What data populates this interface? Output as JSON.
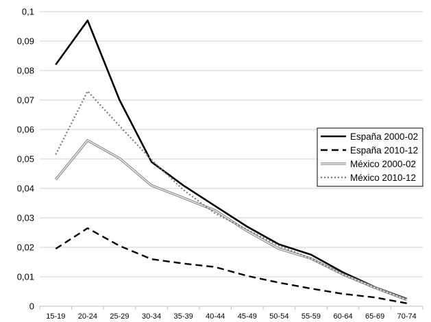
{
  "chart_data": {
    "type": "line",
    "title": "",
    "xlabel": "",
    "ylabel": "",
    "ylim": [
      0,
      0.1
    ],
    "yticks": [
      "0",
      "0,01",
      "0,02",
      "0,03",
      "0,04",
      "0,05",
      "0,06",
      "0,07",
      "0,08",
      "0,09",
      "0,1"
    ],
    "categories": [
      "15-19",
      "20-24",
      "25-29",
      "30-34",
      "35-39",
      "40-44",
      "45-49",
      "50-54",
      "55-59",
      "60-64",
      "65-69",
      "70-74"
    ],
    "grid": true,
    "legend_position": "right",
    "series": [
      {
        "name": "España 2000-02",
        "style": "solid-thick",
        "color": "#000000",
        "values": [
          0.082,
          0.097,
          0.07,
          0.049,
          0.041,
          0.034,
          0.027,
          0.021,
          0.0175,
          0.0115,
          0.0065,
          0.0025
        ]
      },
      {
        "name": "España 2010-12",
        "style": "dashed",
        "color": "#000000",
        "values": [
          0.0195,
          0.0265,
          0.0205,
          0.016,
          0.0145,
          0.0133,
          0.0103,
          0.008,
          0.006,
          0.0042,
          0.003,
          0.001
        ]
      },
      {
        "name": "México 2000-02",
        "style": "double-gray",
        "color": "#8a8a8a",
        "values": [
          0.043,
          0.0563,
          0.0502,
          0.041,
          0.0368,
          0.0325,
          0.0255,
          0.0195,
          0.0162,
          0.0108,
          0.0063,
          0.0022
        ]
      },
      {
        "name": "México 2010-12",
        "style": "dotted",
        "color": "#777777",
        "values": [
          0.0515,
          0.073,
          0.0612,
          0.0497,
          0.0395,
          0.0315,
          0.026,
          0.0205,
          0.0162,
          0.0108,
          0.0063,
          0.0022
        ]
      }
    ]
  }
}
